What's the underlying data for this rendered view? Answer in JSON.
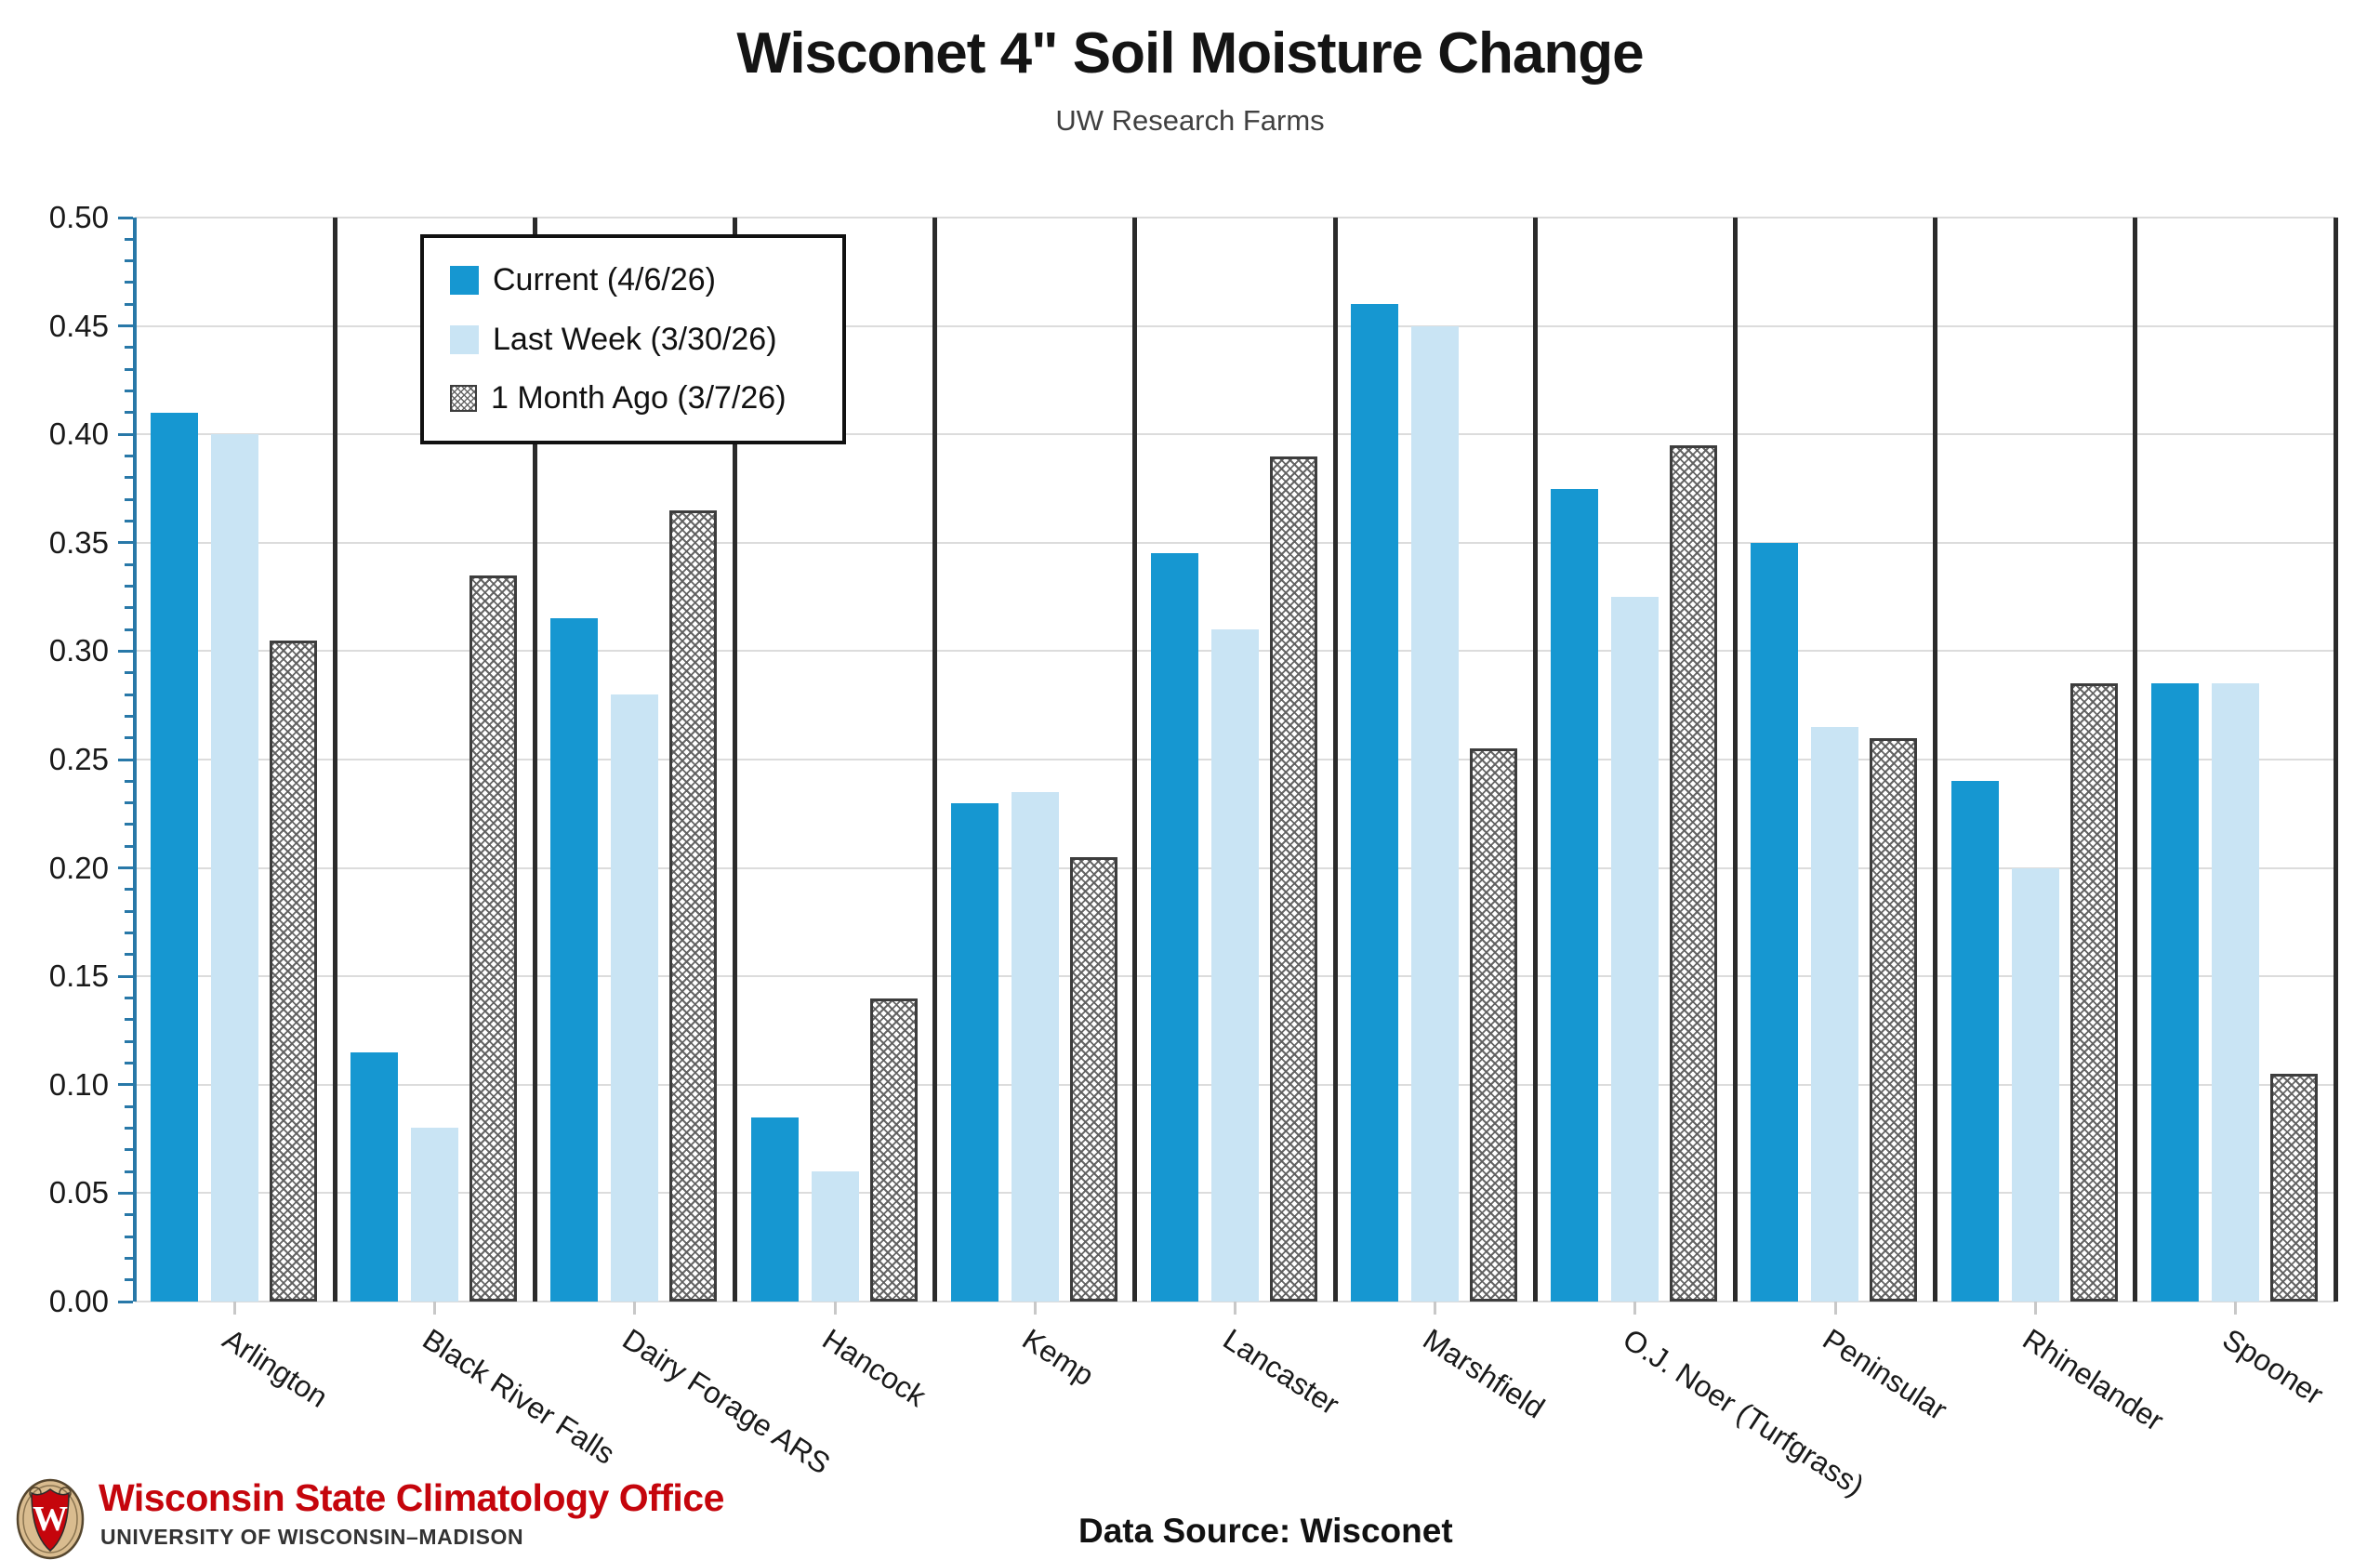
{
  "title": "Wisconet 4\" Soil Moisture Change",
  "subtitle": "UW Research Farms",
  "legend": [
    {
      "label": "Current (4/6/26)"
    },
    {
      "label": "Last Week (3/30/26)"
    },
    {
      "label": "1 Month Ago (3/7/26)"
    }
  ],
  "chart_data": {
    "type": "bar",
    "title": "Wisconet 4\" Soil Moisture Change",
    "subtitle": "UW Research Farms",
    "categories": [
      "Arlington",
      "Black River Falls",
      "Dairy Forage ARS",
      "Hancock",
      "Kemp",
      "Lancaster",
      "Marshfield",
      "O.J. Noer (Turfgrass)",
      "Peninsular",
      "Rhinelander",
      "Spooner"
    ],
    "series": [
      {
        "name": "Current (4/6/26)",
        "style": "solid",
        "color": "#1697d1",
        "values": [
          0.41,
          0.115,
          0.315,
          0.085,
          0.23,
          0.345,
          0.46,
          0.375,
          0.35,
          0.24,
          0.285
        ]
      },
      {
        "name": "Last Week (3/30/26)",
        "style": "solid",
        "color": "#c9e4f4",
        "values": [
          0.4,
          0.08,
          0.28,
          0.06,
          0.235,
          0.31,
          0.45,
          0.325,
          0.265,
          0.2,
          0.285
        ]
      },
      {
        "name": "1 Month Ago (3/7/26)",
        "style": "crosshatch",
        "color": "#ffffff",
        "values": [
          0.305,
          0.335,
          0.365,
          0.14,
          0.205,
          0.39,
          0.255,
          0.395,
          0.26,
          0.285,
          0.105
        ]
      }
    ],
    "ylim": [
      0.0,
      0.5
    ],
    "ytick_step": 0.05,
    "yticks": [
      "0.00",
      "0.05",
      "0.10",
      "0.15",
      "0.20",
      "0.25",
      "0.30",
      "0.35",
      "0.40",
      "0.45",
      "0.50"
    ],
    "minor_tick_step": 0.01,
    "grid": "horizontal",
    "legend_position": "upper-left-inside",
    "group_dividers": true
  },
  "footer": {
    "org_name": "Wisconsin State Climatology Office",
    "org_sub": "UNIVERSITY OF WISCONSIN–MADISON",
    "data_source": "Data Source: Wisconet"
  },
  "colors": {
    "current_blue": "#1697d1",
    "last_week_blue": "#c9e4f4",
    "hatch_gray": "#5f5f5f",
    "hatch_border": "#3d3d3d",
    "gridline": "#dcdcdc",
    "group_divider": "#2b2b2b",
    "y_axis_blue": "#2878a8",
    "brand_red": "#c5050c"
  }
}
